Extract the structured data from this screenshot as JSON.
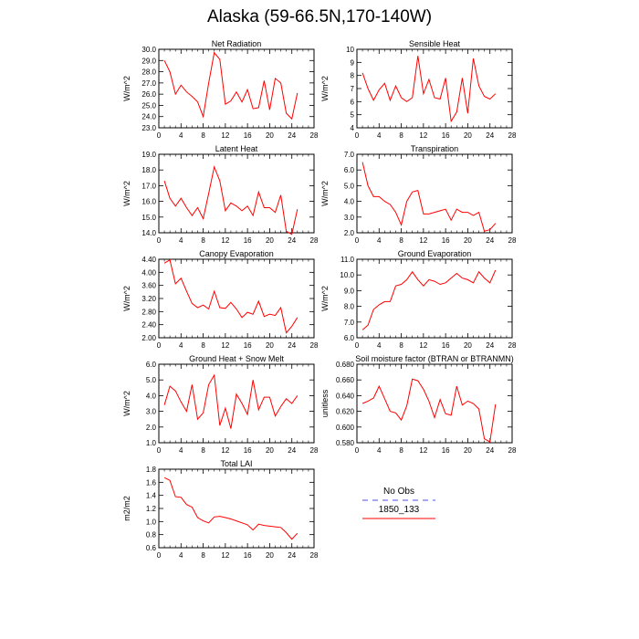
{
  "title": "Alaska (59-66.5N,170-140W)",
  "colors": {
    "model": "#ff0000",
    "obs": "#8a8af0",
    "axis": "#000000"
  },
  "legend": {
    "obs_label": "No Obs",
    "model_label": "1850_133"
  },
  "chart_data": [
    {
      "type": "line",
      "title": "Net Radiation",
      "ylabel": "W/m^2",
      "xlim": [
        0,
        28
      ],
      "ylim": [
        23,
        30
      ],
      "xticks": [
        "0",
        "4",
        "8",
        "12",
        "16",
        "20",
        "24",
        "28"
      ],
      "yticks": [
        "23.0",
        "24.0",
        "25.0",
        "26.0",
        "27.0",
        "28.0",
        "29.0",
        "30.0"
      ],
      "x": [
        1,
        2,
        3,
        4,
        5,
        6,
        7,
        8,
        9,
        10,
        11,
        12,
        13,
        14,
        15,
        16,
        17,
        18,
        19,
        20,
        21,
        22,
        23,
        24,
        25
      ],
      "series": [
        {
          "name": "1850_133",
          "values": [
            29.0,
            28.0,
            26.0,
            26.8,
            26.2,
            25.8,
            25.3,
            24.0,
            27.0,
            29.7,
            29.1,
            25.1,
            25.4,
            26.2,
            25.3,
            26.4,
            24.7,
            24.8,
            27.2,
            24.6,
            27.4,
            27.0,
            24.3,
            23.8,
            26.1
          ]
        }
      ]
    },
    {
      "type": "line",
      "title": "Sensible Heat",
      "ylabel": "W/m^2",
      "xlim": [
        0,
        28
      ],
      "ylim": [
        4,
        10
      ],
      "xticks": [
        "0",
        "4",
        "8",
        "12",
        "16",
        "20",
        "24",
        "28"
      ],
      "yticks": [
        "4",
        "5",
        "6",
        "7",
        "8",
        "9",
        "10"
      ],
      "x": [
        1,
        2,
        3,
        4,
        5,
        6,
        7,
        8,
        9,
        10,
        11,
        12,
        13,
        14,
        15,
        16,
        17,
        18,
        19,
        20,
        21,
        22,
        23,
        24,
        25
      ],
      "series": [
        {
          "name": "1850_133",
          "values": [
            8.2,
            7.0,
            6.1,
            6.9,
            7.4,
            6.1,
            7.2,
            6.3,
            6.0,
            6.3,
            9.5,
            6.6,
            7.7,
            6.3,
            6.2,
            7.8,
            4.5,
            5.2,
            7.8,
            5.1,
            9.3,
            7.2,
            6.4,
            6.2,
            6.6
          ]
        }
      ]
    },
    {
      "type": "line",
      "title": "Latent Heat",
      "ylabel": "W/m^2",
      "xlim": [
        0,
        28
      ],
      "ylim": [
        14,
        19
      ],
      "xticks": [
        "0",
        "4",
        "8",
        "12",
        "16",
        "20",
        "24",
        "28"
      ],
      "yticks": [
        "14.0",
        "15.0",
        "16.0",
        "17.0",
        "18.0",
        "19.0"
      ],
      "x": [
        1,
        2,
        3,
        4,
        5,
        6,
        7,
        8,
        9,
        10,
        11,
        12,
        13,
        14,
        15,
        16,
        17,
        18,
        19,
        20,
        21,
        22,
        23,
        24,
        25
      ],
      "series": [
        {
          "name": "1850_133",
          "values": [
            17.3,
            16.2,
            15.7,
            16.2,
            15.6,
            15.1,
            15.6,
            14.9,
            16.5,
            18.2,
            17.3,
            15.4,
            15.9,
            15.7,
            15.4,
            15.7,
            15.1,
            16.6,
            15.6,
            15.6,
            15.3,
            16.4,
            14.1,
            13.9,
            15.5
          ]
        }
      ]
    },
    {
      "type": "line",
      "title": "Transpiration",
      "ylabel": "W/m^2",
      "xlim": [
        0,
        28
      ],
      "ylim": [
        2,
        7
      ],
      "xticks": [
        "0",
        "4",
        "8",
        "12",
        "16",
        "20",
        "24",
        "28"
      ],
      "yticks": [
        "2.0",
        "3.0",
        "4.0",
        "5.0",
        "6.0",
        "7.0"
      ],
      "x": [
        1,
        2,
        3,
        4,
        5,
        6,
        7,
        8,
        9,
        10,
        11,
        12,
        13,
        14,
        15,
        16,
        17,
        18,
        19,
        20,
        21,
        22,
        23,
        24,
        25
      ],
      "series": [
        {
          "name": "1850_133",
          "values": [
            6.5,
            5.0,
            4.3,
            4.3,
            4.0,
            3.8,
            3.3,
            2.5,
            4.0,
            4.6,
            4.7,
            3.2,
            3.2,
            3.3,
            3.4,
            3.5,
            2.8,
            3.5,
            3.3,
            3.3,
            3.1,
            3.3,
            2.1,
            2.2,
            2.6
          ]
        }
      ]
    },
    {
      "type": "line",
      "title": "Canopy Evaporation",
      "ylabel": "W/m^2",
      "xlim": [
        0,
        28
      ],
      "ylim": [
        2.0,
        4.4
      ],
      "xticks": [
        "0",
        "4",
        "8",
        "12",
        "16",
        "20",
        "24",
        "28"
      ],
      "yticks": [
        "2.00",
        "2.40",
        "2.80",
        "3.20",
        "3.60",
        "4.00",
        "4.40"
      ],
      "x": [
        1,
        2,
        3,
        4,
        5,
        6,
        7,
        8,
        9,
        10,
        11,
        12,
        13,
        14,
        15,
        16,
        17,
        18,
        19,
        20,
        21,
        22,
        23,
        24,
        25
      ],
      "series": [
        {
          "name": "1850_133",
          "values": [
            4.28,
            4.38,
            3.65,
            3.82,
            3.42,
            3.05,
            2.92,
            3.0,
            2.88,
            3.42,
            2.92,
            2.9,
            3.08,
            2.88,
            2.62,
            2.78,
            2.72,
            3.12,
            2.65,
            2.72,
            2.68,
            2.92,
            2.15,
            2.35,
            2.62
          ]
        }
      ]
    },
    {
      "type": "line",
      "title": "Ground Evaporation",
      "ylabel": "W/m^2",
      "xlim": [
        0,
        28
      ],
      "ylim": [
        6,
        11
      ],
      "xticks": [
        "0",
        "4",
        "8",
        "12",
        "16",
        "20",
        "24",
        "28"
      ],
      "yticks": [
        "6.0",
        "7.0",
        "8.0",
        "9.0",
        "10.0",
        "11.0"
      ],
      "x": [
        1,
        2,
        3,
        4,
        5,
        6,
        7,
        8,
        9,
        10,
        11,
        12,
        13,
        14,
        15,
        16,
        17,
        18,
        19,
        20,
        21,
        22,
        23,
        24,
        25
      ],
      "series": [
        {
          "name": "1850_133",
          "values": [
            6.5,
            6.8,
            7.8,
            8.1,
            8.3,
            8.3,
            9.3,
            9.4,
            9.7,
            10.2,
            9.7,
            9.3,
            9.7,
            9.6,
            9.4,
            9.5,
            9.8,
            10.1,
            9.8,
            9.7,
            9.5,
            10.2,
            9.8,
            9.5,
            10.3
          ]
        }
      ]
    },
    {
      "type": "line",
      "title": "Ground Heat + Snow Melt",
      "ylabel": "W/m^2",
      "xlim": [
        0,
        28
      ],
      "ylim": [
        1,
        6
      ],
      "xticks": [
        "0",
        "4",
        "8",
        "12",
        "16",
        "20",
        "24",
        "28"
      ],
      "yticks": [
        "1.0",
        "2.0",
        "3.0",
        "4.0",
        "5.0",
        "6.0"
      ],
      "x": [
        1,
        2,
        3,
        4,
        5,
        6,
        7,
        8,
        9,
        10,
        11,
        12,
        13,
        14,
        15,
        16,
        17,
        18,
        19,
        20,
        21,
        22,
        23,
        24,
        25
      ],
      "series": [
        {
          "name": "1850_133",
          "values": [
            3.4,
            4.6,
            4.3,
            3.6,
            3.0,
            4.7,
            2.5,
            2.9,
            4.7,
            5.3,
            2.1,
            3.2,
            1.9,
            4.1,
            3.5,
            2.8,
            5.0,
            3.1,
            3.9,
            3.9,
            2.7,
            3.3,
            3.8,
            3.5,
            4.0
          ]
        }
      ]
    },
    {
      "type": "line",
      "title": "Soil moisture factor (BTRAN or BTRANMN)",
      "ylabel": "unitless",
      "xlim": [
        0,
        28
      ],
      "ylim": [
        0.58,
        0.68
      ],
      "xticks": [
        "0",
        "4",
        "8",
        "12",
        "16",
        "20",
        "24",
        "28"
      ],
      "yticks": [
        "0.580",
        "0.600",
        "0.620",
        "0.640",
        "0.660",
        "0.680"
      ],
      "x": [
        1,
        2,
        3,
        4,
        5,
        6,
        7,
        8,
        9,
        10,
        11,
        12,
        13,
        14,
        15,
        16,
        17,
        18,
        19,
        20,
        21,
        22,
        23,
        24,
        25
      ],
      "series": [
        {
          "name": "1850_133",
          "values": [
            0.63,
            0.633,
            0.637,
            0.652,
            0.636,
            0.62,
            0.618,
            0.609,
            0.627,
            0.661,
            0.659,
            0.648,
            0.633,
            0.612,
            0.635,
            0.617,
            0.615,
            0.652,
            0.628,
            0.633,
            0.63,
            0.623,
            0.585,
            0.581,
            0.629
          ]
        }
      ]
    },
    {
      "type": "line",
      "title": "Total LAI",
      "ylabel": "m2/m2",
      "xlim": [
        0,
        28
      ],
      "ylim": [
        0.6,
        1.8
      ],
      "xticks": [
        "0",
        "4",
        "8",
        "12",
        "16",
        "20",
        "24",
        "28"
      ],
      "yticks": [
        "0.6",
        "0.8",
        "1.0",
        "1.2",
        "1.4",
        "1.6",
        "1.8"
      ],
      "x": [
        1,
        2,
        3,
        4,
        5,
        6,
        7,
        8,
        9,
        10,
        11,
        12,
        13,
        14,
        15,
        16,
        17,
        18,
        19,
        20,
        21,
        22,
        23,
        24,
        25
      ],
      "series": [
        {
          "name": "1850_133",
          "values": [
            1.67,
            1.63,
            1.38,
            1.37,
            1.26,
            1.22,
            1.06,
            1.01,
            0.98,
            1.07,
            1.08,
            1.06,
            1.04,
            1.01,
            0.98,
            0.95,
            0.87,
            0.96,
            0.94,
            0.93,
            0.92,
            0.91,
            0.83,
            0.73,
            0.82
          ]
        }
      ]
    }
  ]
}
